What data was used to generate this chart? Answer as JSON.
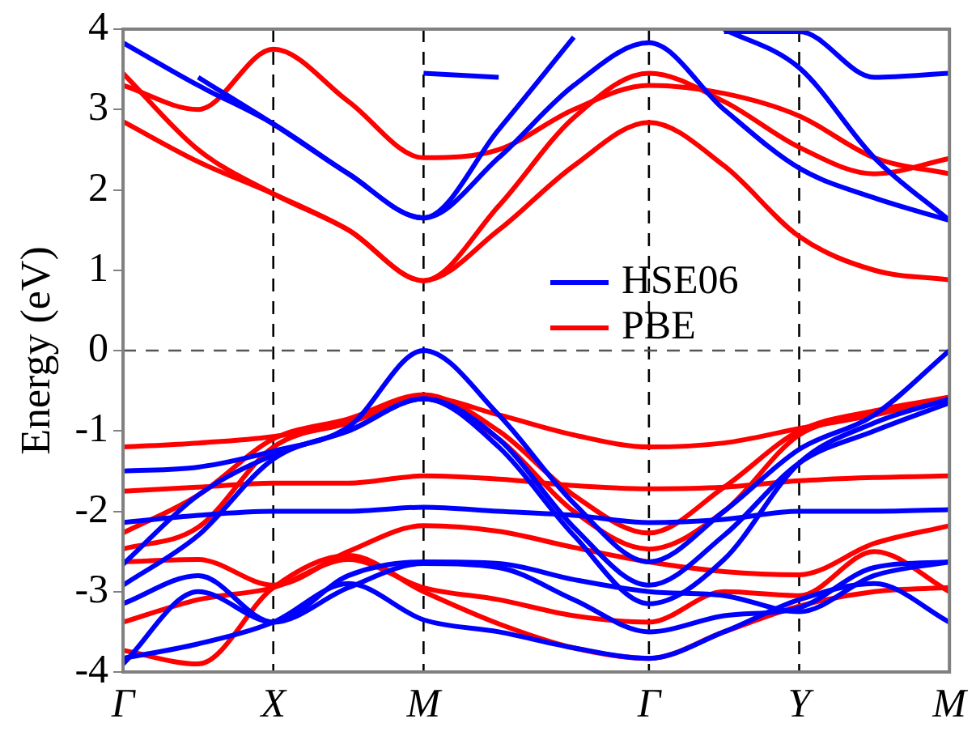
{
  "chart_data": {
    "type": "line",
    "ylabel": "Energy (eV)",
    "ylim": [
      -4,
      4
    ],
    "categories": [
      "Γ",
      null,
      "X",
      null,
      "M",
      null,
      null,
      "Γ",
      null,
      "Y",
      null,
      "M"
    ],
    "yticks": [
      -4,
      -3,
      -2,
      -1,
      0,
      1,
      2,
      3,
      4
    ],
    "grid": "x",
    "legend": "center",
    "line_style": "solid",
    "marker": "none",
    "ref_lines": [
      {
        "axis": "y",
        "value": 0,
        "color": "#555555",
        "line_style": "dashed"
      }
    ],
    "series": [
      {
        "name": "HSE06",
        "color": "#0000ff",
        "values": [
          3.83,
          3.3,
          2.82,
          2.2,
          1.65,
          2.4,
          3.3,
          3.83,
          3.0,
          2.27,
          1.9,
          1.62
        ]
      },
      {
        "color": "#0000ff",
        "values": [
          null,
          3.4,
          2.82,
          2.2,
          1.65,
          2.75,
          3.9,
          null,
          null,
          null,
          null,
          null
        ]
      },
      {
        "color": "#0000ff",
        "values": [
          null,
          null,
          null,
          null,
          3.45,
          3.4,
          null,
          null,
          null,
          null,
          null,
          null
        ]
      },
      {
        "color": "#0000ff",
        "values": [
          null,
          null,
          null,
          null,
          null,
          null,
          null,
          null,
          4,
          3.52,
          2.4,
          1.62
        ]
      },
      {
        "color": "#0000ff",
        "values": [
          null,
          null,
          null,
          null,
          null,
          null,
          null,
          null,
          3.97,
          3.97,
          3.4,
          3.45
        ]
      },
      {
        "color": "#0000ff",
        "values": [
          -1.5,
          -1.45,
          -1.25,
          -0.95,
          0,
          -0.8,
          -1.9,
          -2.63,
          -2.0,
          -1.23,
          -0.8,
          0
        ]
      },
      {
        "color": "#0000ff",
        "values": [
          -2.66,
          -1.8,
          -1.3,
          -1.0,
          -0.6,
          -1.1,
          -2.2,
          -2.92,
          -2.3,
          -1.4,
          -1.0,
          -0.65
        ]
      },
      {
        "color": "#0000ff",
        "values": [
          -2.14,
          -2.05,
          -2.0,
          -2.0,
          -1.95,
          -2.0,
          -2.05,
          -2.14,
          -2.1,
          -2.0,
          -2.0,
          -1.98
        ]
      },
      {
        "color": "#0000ff",
        "values": [
          -2.92,
          -2.3,
          -1.35,
          -1.0,
          -0.6,
          -1.2,
          -2.3,
          -3.15,
          -2.6,
          -1.4,
          -0.9,
          -0.6
        ]
      },
      {
        "color": "#0000ff",
        "values": [
          -3.15,
          -2.8,
          -3.38,
          -2.8,
          -2.63,
          -2.65,
          -2.85,
          -3.0,
          -3.05,
          -3.25,
          -2.8,
          -2.63
        ]
      },
      {
        "color": "#0000ff",
        "values": [
          -3.83,
          -3.65,
          -3.38,
          -2.9,
          -3.35,
          -3.5,
          -3.7,
          -3.83,
          -3.5,
          -3.1,
          -2.9,
          -3.38
        ]
      },
      {
        "color": "#0000ff",
        "values": [
          -3.9,
          -3.0,
          -3.38,
          -2.95,
          -2.65,
          -2.7,
          -3.1,
          -3.5,
          -3.3,
          -3.2,
          -2.7,
          -2.63
        ]
      },
      {
        "name": "PBE",
        "color": "#ff0000",
        "values": [
          2.85,
          2.35,
          1.95,
          1.5,
          0.87,
          1.5,
          2.3,
          2.84,
          2.3,
          1.42,
          1.0,
          0.88
        ]
      },
      {
        "color": "#ff0000",
        "values": [
          3.45,
          2.5,
          1.95,
          1.5,
          0.87,
          1.8,
          2.9,
          3.45,
          3.1,
          2.53,
          2.2,
          2.39
        ]
      },
      {
        "color": "#ff0000",
        "values": [
          3.3,
          3.0,
          3.75,
          3.1,
          2.4,
          2.5,
          3.0,
          3.3,
          3.2,
          2.92,
          2.4,
          2.2
        ]
      },
      {
        "color": "#ff0000",
        "values": [
          -1.2,
          -1.15,
          -1.07,
          -0.9,
          -0.58,
          -0.8,
          -1.05,
          -1.2,
          -1.15,
          -0.97,
          -0.8,
          -0.58
        ]
      },
      {
        "color": "#ff0000",
        "values": [
          -2.27,
          -1.8,
          -1.1,
          -0.85,
          -0.55,
          -1.0,
          -1.8,
          -2.27,
          -1.7,
          -1.0,
          -0.75,
          -0.58
        ]
      },
      {
        "color": "#ff0000",
        "values": [
          -1.75,
          -1.7,
          -1.65,
          -1.65,
          -1.56,
          -1.6,
          -1.68,
          -1.72,
          -1.7,
          -1.62,
          -1.58,
          -1.56
        ]
      },
      {
        "color": "#ff0000",
        "values": [
          -2.47,
          -2.2,
          -1.2,
          -0.9,
          -0.6,
          -1.1,
          -2.0,
          -2.47,
          -2.0,
          -1.05,
          -0.8,
          -0.6
        ]
      },
      {
        "color": "#ff0000",
        "values": [
          -2.63,
          -2.6,
          -2.92,
          -2.5,
          -2.18,
          -2.25,
          -2.45,
          -2.63,
          -2.75,
          -2.79,
          -2.4,
          -2.18
        ]
      },
      {
        "color": "#ff0000",
        "values": [
          -3.38,
          -3.1,
          -2.95,
          -2.6,
          -2.95,
          -3.1,
          -3.3,
          -3.38,
          -3.0,
          -3.05,
          -2.5,
          -3.0
        ]
      },
      {
        "color": "#ff0000",
        "values": [
          -3.73,
          -3.9,
          -2.95,
          -2.55,
          -3.0,
          -3.4,
          -3.7,
          -3.83,
          -3.5,
          -3.18,
          -3.0,
          -2.95
        ]
      }
    ]
  }
}
